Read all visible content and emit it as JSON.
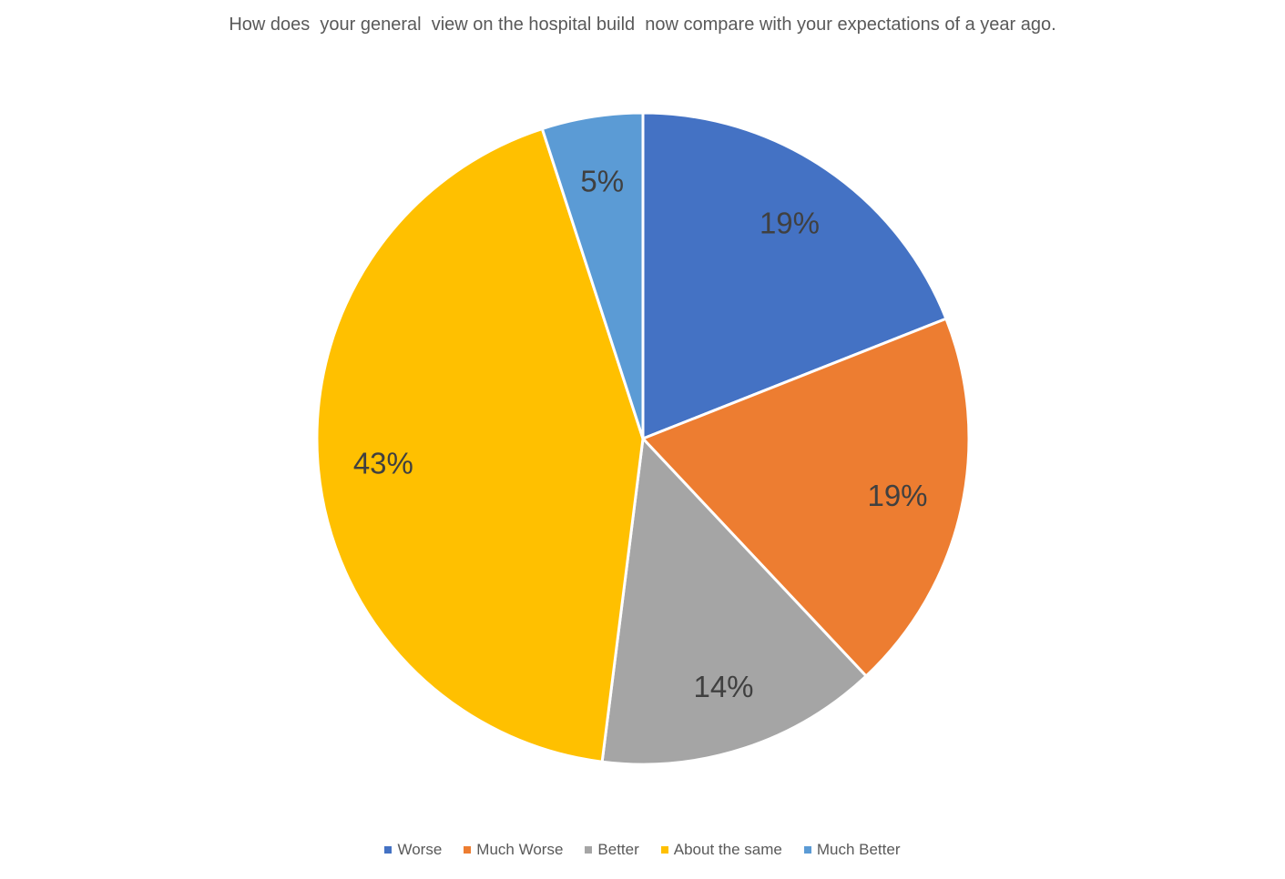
{
  "chart_data": {
    "type": "pie",
    "title": "How does  your general  view on the hospital build  now compare with your expectations of a year ago.",
    "categories": [
      "Worse",
      "Much Worse",
      "Better",
      "About the same",
      "Much Better"
    ],
    "values": [
      19,
      19,
      14,
      43,
      5
    ],
    "labels": [
      "19%",
      "19%",
      "14%",
      "43%",
      "5%"
    ],
    "colors": [
      "#4472C4",
      "#ED7D31",
      "#A5A5A5",
      "#FFC000",
      "#5B9BD5"
    ],
    "start_angle": "12 o'clock",
    "direction": "clockwise",
    "legend_position": "bottom"
  }
}
